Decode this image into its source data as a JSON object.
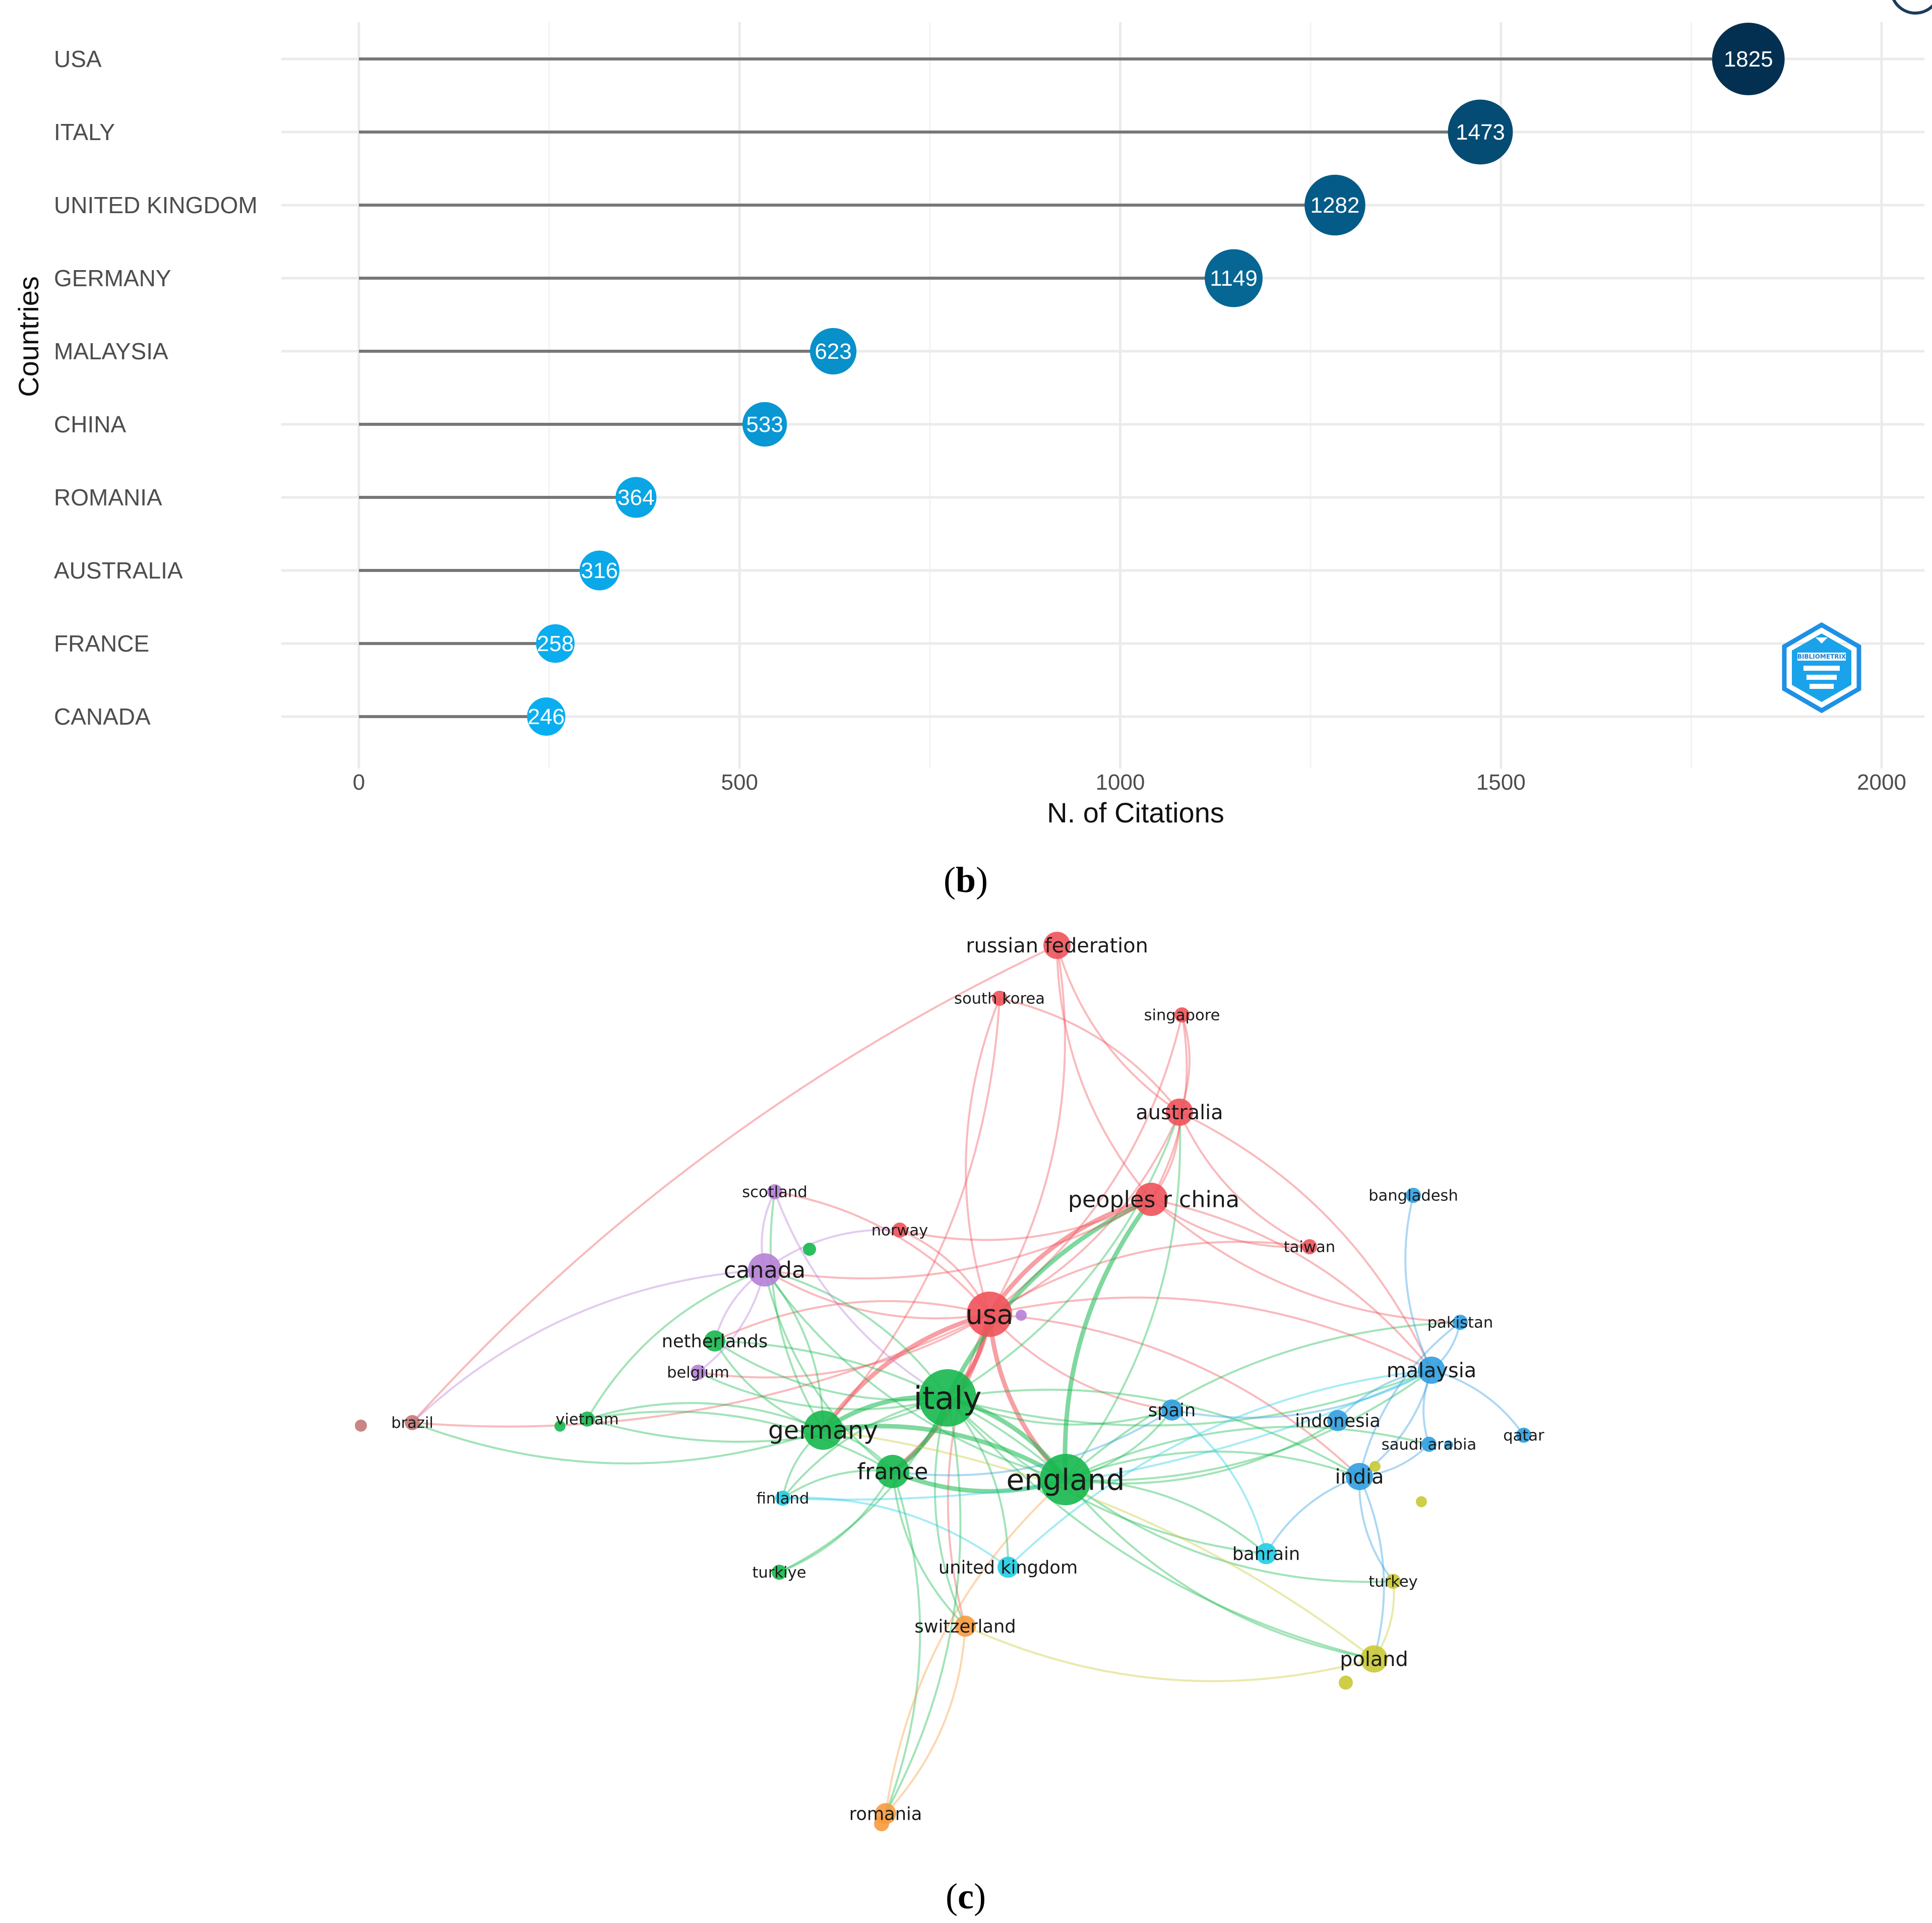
{
  "chart_data": [
    {
      "type": "lollipop",
      "panel": "b",
      "categories": [
        "USA",
        "ITALY",
        "UNITED KINGDOM",
        "GERMANY",
        "MALAYSIA",
        "CHINA",
        "ROMANIA",
        "AUSTRALIA",
        "FRANCE",
        "CANADA"
      ],
      "values": [
        1825,
        1473,
        1282,
        1149,
        623,
        533,
        364,
        316,
        258,
        246
      ],
      "value_labels": [
        "1825",
        "1473",
        "1282",
        "1149",
        "623",
        "533",
        "364",
        "316",
        "258",
        "246"
      ],
      "xlabel": "N. of Citations",
      "ylabel": "Countries",
      "xlim": [
        -100,
        2050
      ],
      "xticks": [
        0,
        500,
        1000,
        1500,
        2000
      ],
      "xtick_labels": [
        "0",
        "500",
        "1000",
        "1500",
        "2000"
      ],
      "grid": true,
      "color_scale": {
        "low": "#0aaef0",
        "high": "#033050"
      },
      "logo": "bibliometrix-logo-icon"
    },
    {
      "type": "network",
      "panel": "c",
      "clusters": {
        "red": "#f0525a",
        "green": "#16b84e",
        "blue": "#2f9ee0",
        "yellow": "#c9c935",
        "purple": "#b67fd6",
        "cyan": "#22cce4",
        "orange": "#f79a3e",
        "brown": "#c47878"
      },
      "nodes": [
        {
          "id": "russian federation",
          "label": "russian federation",
          "cluster": "red",
          "weight": 3
        },
        {
          "id": "south korea",
          "label": "south korea",
          "cluster": "red",
          "weight": 1
        },
        {
          "id": "singapore",
          "label": "singapore",
          "cluster": "red",
          "weight": 1
        },
        {
          "id": "australia",
          "label": "australia",
          "cluster": "red",
          "weight": 3
        },
        {
          "id": "peoples r china",
          "label": "peoples r china",
          "cluster": "red",
          "weight": 4
        },
        {
          "id": "taiwan",
          "label": "taiwan",
          "cluster": "red",
          "weight": 1
        },
        {
          "id": "norway",
          "label": "norway",
          "cluster": "red",
          "weight": 1
        },
        {
          "id": "usa",
          "label": "usa",
          "cluster": "red",
          "weight": 6
        },
        {
          "id": "bangladesh",
          "label": "bangladesh",
          "cluster": "blue",
          "weight": 1
        },
        {
          "id": "pakistan",
          "label": "pakistan",
          "cluster": "blue",
          "weight": 1
        },
        {
          "id": "malaysia",
          "label": "malaysia",
          "cluster": "blue",
          "weight": 3
        },
        {
          "id": "qatar",
          "label": "qatar",
          "cluster": "blue",
          "weight": 1
        },
        {
          "id": "saudi arabia",
          "label": "saudi arabia",
          "cluster": "blue",
          "weight": 1
        },
        {
          "id": "india",
          "label": "india",
          "cluster": "blue",
          "weight": 3
        },
        {
          "id": "indonesia",
          "label": "indonesia",
          "cluster": "blue",
          "weight": 2
        },
        {
          "id": "spain",
          "label": "spain",
          "cluster": "blue",
          "weight": 2
        },
        {
          "id": "scotland",
          "label": "scotland",
          "cluster": "purple",
          "weight": 1
        },
        {
          "id": "canada",
          "label": "canada",
          "cluster": "purple",
          "weight": 4
        },
        {
          "id": "belgium",
          "label": "belgium",
          "cluster": "purple",
          "weight": 1
        },
        {
          "id": "netherlands",
          "label": "netherlands",
          "cluster": "green",
          "weight": 2
        },
        {
          "id": "italy",
          "label": "italy",
          "cluster": "green",
          "weight": 8
        },
        {
          "id": "germany",
          "label": "germany",
          "cluster": "green",
          "weight": 5
        },
        {
          "id": "france",
          "label": "france",
          "cluster": "green",
          "weight": 4
        },
        {
          "id": "england",
          "label": "england",
          "cluster": "green",
          "weight": 7
        },
        {
          "id": "vietnam",
          "label": "vietnam",
          "cluster": "green",
          "weight": 1
        },
        {
          "id": "turkiye",
          "label": "turkiye",
          "cluster": "green",
          "weight": 1
        },
        {
          "id": "brazil",
          "label": "brazil",
          "cluster": "brown",
          "weight": 1
        },
        {
          "id": "finland",
          "label": "finland",
          "cluster": "cyan",
          "weight": 1
        },
        {
          "id": "united kingdom",
          "label": "united kingdom",
          "cluster": "cyan",
          "weight": 2
        },
        {
          "id": "bahrain",
          "label": "bahrain",
          "cluster": "cyan",
          "weight": 2
        },
        {
          "id": "switzerland",
          "label": "switzerland",
          "cluster": "orange",
          "weight": 2
        },
        {
          "id": "romania",
          "label": "romania",
          "cluster": "orange",
          "weight": 2
        },
        {
          "id": "turkey",
          "label": "turkey",
          "cluster": "yellow",
          "weight": 1
        },
        {
          "id": "poland",
          "label": "poland",
          "cluster": "yellow",
          "weight": 3
        }
      ],
      "edges": [
        [
          "usa",
          "italy"
        ],
        [
          "usa",
          "england"
        ],
        [
          "usa",
          "peoples r china"
        ],
        [
          "usa",
          "australia"
        ],
        [
          "usa",
          "canada"
        ],
        [
          "usa",
          "germany"
        ],
        [
          "usa",
          "france"
        ],
        [
          "usa",
          "russian federation"
        ],
        [
          "usa",
          "south korea"
        ],
        [
          "usa",
          "norway"
        ],
        [
          "usa",
          "malaysia"
        ],
        [
          "usa",
          "spain"
        ],
        [
          "usa",
          "india"
        ],
        [
          "usa",
          "netherlands"
        ],
        [
          "usa",
          "belgium"
        ],
        [
          "usa",
          "scotland"
        ],
        [
          "usa",
          "taiwan"
        ],
        [
          "usa",
          "singapore"
        ],
        [
          "usa",
          "brazil"
        ],
        [
          "usa",
          "switzerland"
        ],
        [
          "italy",
          "england"
        ],
        [
          "italy",
          "germany"
        ],
        [
          "italy",
          "france"
        ],
        [
          "italy",
          "spain"
        ],
        [
          "italy",
          "netherlands"
        ],
        [
          "italy",
          "canada"
        ],
        [
          "italy",
          "vietnam"
        ],
        [
          "italy",
          "malaysia"
        ],
        [
          "italy",
          "india"
        ],
        [
          "italy",
          "bahrain"
        ],
        [
          "italy",
          "united kingdom"
        ],
        [
          "italy",
          "switzerland"
        ],
        [
          "italy",
          "romania"
        ],
        [
          "italy",
          "poland"
        ],
        [
          "italy",
          "turkiye"
        ],
        [
          "italy",
          "finland"
        ],
        [
          "italy",
          "peoples r china"
        ],
        [
          "italy",
          "australia"
        ],
        [
          "italy",
          "belgium"
        ],
        [
          "england",
          "germany"
        ],
        [
          "england",
          "france"
        ],
        [
          "england",
          "malaysia"
        ],
        [
          "england",
          "india"
        ],
        [
          "england",
          "spain"
        ],
        [
          "england",
          "peoples r china"
        ],
        [
          "england",
          "australia"
        ],
        [
          "england",
          "bahrain"
        ],
        [
          "england",
          "poland"
        ],
        [
          "england",
          "saudi arabia"
        ],
        [
          "england",
          "indonesia"
        ],
        [
          "england",
          "canada"
        ],
        [
          "england",
          "netherlands"
        ],
        [
          "england",
          "pakistan"
        ],
        [
          "england",
          "turkey"
        ],
        [
          "germany",
          "france"
        ],
        [
          "germany",
          "vietnam"
        ],
        [
          "germany",
          "netherlands"
        ],
        [
          "germany",
          "canada"
        ],
        [
          "germany",
          "scotland"
        ],
        [
          "germany",
          "finland"
        ],
        [
          "germany",
          "brazil"
        ],
        [
          "france",
          "finland"
        ],
        [
          "france",
          "turkiye"
        ],
        [
          "france",
          "switzerland"
        ],
        [
          "france",
          "romania"
        ],
        [
          "france",
          "vietnam"
        ],
        [
          "france",
          "canada"
        ],
        [
          "peoples r china",
          "australia"
        ],
        [
          "peoples r china",
          "russian federation"
        ],
        [
          "peoples r china",
          "taiwan"
        ],
        [
          "peoples r china",
          "malaysia"
        ],
        [
          "peoples r china",
          "singapore"
        ],
        [
          "peoples r china",
          "canada"
        ],
        [
          "peoples r china",
          "pakistan"
        ],
        [
          "peoples r china",
          "norway"
        ],
        [
          "australia",
          "singapore"
        ],
        [
          "australia",
          "russian federation"
        ],
        [
          "australia",
          "south korea"
        ],
        [
          "australia",
          "malaysia"
        ],
        [
          "australia",
          "taiwan"
        ],
        [
          "malaysia",
          "india"
        ],
        [
          "malaysia",
          "pakistan"
        ],
        [
          "malaysia",
          "qatar"
        ],
        [
          "malaysia",
          "saudi arabia"
        ],
        [
          "malaysia",
          "bangladesh"
        ],
        [
          "malaysia",
          "indonesia"
        ],
        [
          "malaysia",
          "spain"
        ],
        [
          "india",
          "saudi arabia"
        ],
        [
          "india",
          "pakistan"
        ],
        [
          "india",
          "turkey"
        ],
        [
          "india",
          "poland"
        ],
        [
          "india",
          "bahrain"
        ],
        [
          "canada",
          "scotland"
        ],
        [
          "canada",
          "netherlands"
        ],
        [
          "canada",
          "belgium"
        ],
        [
          "canada",
          "brazil"
        ],
        [
          "canada",
          "norway"
        ],
        [
          "poland",
          "turkey"
        ],
        [
          "poland",
          "switzerland"
        ],
        [
          "poland",
          "germany"
        ],
        [
          "switzerland",
          "romania"
        ],
        [
          "united kingdom",
          "finland"
        ],
        [
          "united kingdom",
          "malaysia"
        ],
        [
          "bahrain",
          "spain"
        ],
        [
          "spain",
          "france"
        ],
        [
          "russian federation",
          "brazil"
        ],
        [
          "south korea",
          "germany"
        ],
        [
          "scotland",
          "italy"
        ],
        [
          "vietnam",
          "canada"
        ],
        [
          "finland",
          "malaysia"
        ],
        [
          "romania",
          "england"
        ]
      ]
    }
  ],
  "captions": {
    "b": {
      "open": "(",
      "letter": "b",
      "close": ")"
    },
    "c": {
      "open": "(",
      "letter": "c",
      "close": ")"
    }
  }
}
